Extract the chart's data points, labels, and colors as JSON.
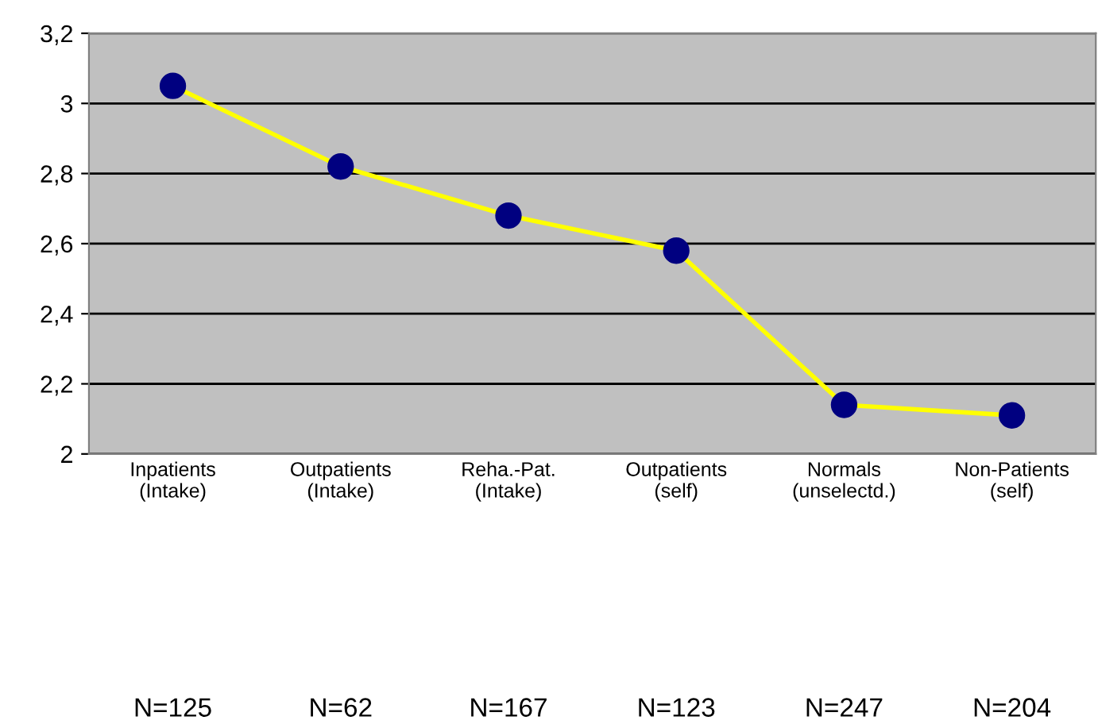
{
  "chart_data": {
    "type": "line",
    "categories": [
      "Inpatients\n(Intake)",
      "Outpatients\n(Intake)",
      "Reha.-Pat.\n(Intake)",
      "Outpatients\n(self)",
      "Normals\n(unselectd.)",
      "Non-Patients\n(self)"
    ],
    "series": [
      {
        "color": "#ffff00",
        "colors": [
          "#000080",
          "#000080",
          "#000080",
          "#000080",
          "#000080",
          "#000080"
        ],
        "values": [
          3.05,
          2.82,
          2.68,
          2.58,
          2.14,
          2.11
        ]
      }
    ],
    "marker": "circle",
    "ylim": [
      2,
      3.2
    ],
    "yticks": [
      2,
      {
        "value": 2.2,
        "label": "2,2"
      },
      {
        "value": 2.4,
        "label": "2,4"
      },
      {
        "value": 2.6,
        "label": "2,6"
      },
      {
        "value": 2.8,
        "label": "2,8"
      },
      3,
      {
        "value": 3.2,
        "label": "3,2"
      }
    ],
    "grid": "y",
    "legend": false,
    "annotations": [
      "N=125",
      "N=62",
      "N=167",
      "N=123",
      "N=247",
      "N=204"
    ]
  }
}
